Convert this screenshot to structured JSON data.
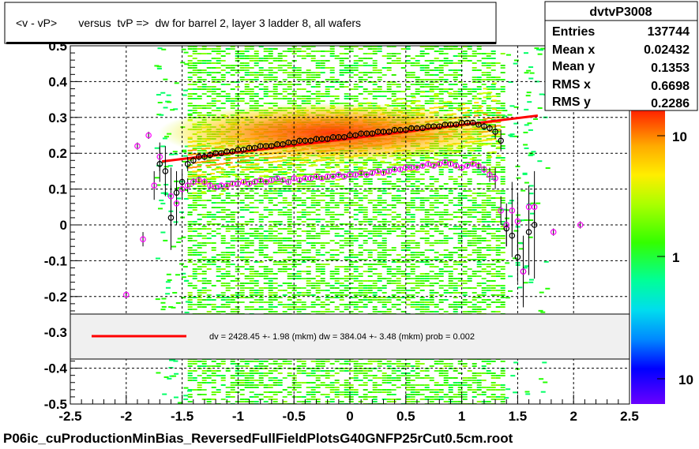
{
  "chart_data": {
    "type": "scatter",
    "title": "<v - vP>       versus  tvP =>  dw for barrel 2, layer 3 ladder 8, all wafers",
    "footer": "P06ic_cuProductionMinBias_ReversedFullFieldPlotsG40GNFP25rCut0.5cm.root",
    "xlim": [
      -2.5,
      2.5
    ],
    "ylim": [
      -0.5,
      0.5
    ],
    "x_ticks": [
      "-2.5",
      "-2",
      "-1.5",
      "-1",
      "-0.5",
      "0",
      "0.5",
      "1",
      "1.5",
      "2",
      "2.5"
    ],
    "y_ticks": [
      "-0.5",
      "-0.4",
      "-0.3",
      "-0.2",
      "-0.1",
      "0",
      "0.1",
      "0.2",
      "0.3",
      "0.4",
      "0.5"
    ],
    "grid": true,
    "colorbar": {
      "scale": "log",
      "labels": [
        "10",
        "1",
        "10"
      ],
      "label_values": [
        10,
        1,
        0.1
      ]
    },
    "stats": {
      "name": "dvtvP3008",
      "rows": [
        {
          "label": "Entries",
          "value": "137744"
        },
        {
          "label": "Mean x",
          "value": "0.02432"
        },
        {
          "label": "Mean y",
          "value": "0.1353"
        },
        {
          "label": "RMS x",
          "value": "0.6698"
        },
        {
          "label": "RMS y",
          "value": "0.2286"
        }
      ]
    },
    "fit_legend": "dv = 2428.45 +-  1.98 (mkm) dw =  384.04 +-  3.48 (mkm) prob = 0.002",
    "fit_line": {
      "x": [
        -1.68,
        1.68
      ],
      "y": [
        0.177,
        0.305
      ],
      "color": "#ff0000"
    },
    "series": [
      {
        "marker": "black-open-circle",
        "x": [
          -1.7,
          -1.65,
          -1.6,
          -1.55,
          -1.5,
          -1.45,
          -1.4,
          -1.35,
          -1.3,
          -1.25,
          -1.2,
          -1.15,
          -1.1,
          -1.05,
          -1.0,
          -0.95,
          -0.9,
          -0.85,
          -0.8,
          -0.75,
          -0.7,
          -0.65,
          -0.6,
          -0.55,
          -0.5,
          -0.45,
          -0.4,
          -0.35,
          -0.3,
          -0.25,
          -0.2,
          -0.15,
          -0.1,
          -0.05,
          0.0,
          0.05,
          0.1,
          0.15,
          0.2,
          0.25,
          0.3,
          0.35,
          0.4,
          0.45,
          0.5,
          0.55,
          0.6,
          0.65,
          0.7,
          0.75,
          0.8,
          0.85,
          0.9,
          0.95,
          1.0,
          1.05,
          1.1,
          1.15,
          1.2,
          1.25,
          1.3,
          1.35,
          1.4,
          1.45,
          1.5,
          1.55,
          1.6,
          1.65
        ],
        "y": [
          0.17,
          0.15,
          0.02,
          0.09,
          0.12,
          0.17,
          0.18,
          0.19,
          0.19,
          0.195,
          0.2,
          0.2,
          0.205,
          0.205,
          0.21,
          0.21,
          0.215,
          0.215,
          0.22,
          0.22,
          0.22,
          0.225,
          0.225,
          0.23,
          0.23,
          0.235,
          0.235,
          0.235,
          0.24,
          0.24,
          0.24,
          0.245,
          0.245,
          0.245,
          0.25,
          0.25,
          0.255,
          0.255,
          0.255,
          0.26,
          0.26,
          0.26,
          0.265,
          0.265,
          0.265,
          0.27,
          0.27,
          0.27,
          0.275,
          0.275,
          0.275,
          0.28,
          0.28,
          0.28,
          0.285,
          0.285,
          0.285,
          0.28,
          0.275,
          0.27,
          0.26,
          0.235,
          -0.01,
          -0.03,
          -0.09,
          -0.13,
          -0.02,
          0.0
        ],
        "err": [
          0.05,
          0.07,
          0.09,
          0.06,
          0.03,
          0.02,
          0.01,
          0.01,
          0.01,
          0.01,
          0.005,
          0.005,
          0.005,
          0.005,
          0.005,
          0.005,
          0.005,
          0.005,
          0.005,
          0.005,
          0.005,
          0.005,
          0.005,
          0.005,
          0.005,
          0.005,
          0.005,
          0.005,
          0.005,
          0.005,
          0.005,
          0.005,
          0.005,
          0.005,
          0.005,
          0.005,
          0.005,
          0.005,
          0.005,
          0.005,
          0.005,
          0.005,
          0.005,
          0.005,
          0.005,
          0.005,
          0.005,
          0.005,
          0.005,
          0.005,
          0.005,
          0.005,
          0.005,
          0.005,
          0.005,
          0.005,
          0.005,
          0.005,
          0.01,
          0.01,
          0.02,
          0.03,
          0.05,
          0.06,
          0.07,
          0.09,
          0.12,
          0.15
        ]
      },
      {
        "marker": "magenta-open-circle",
        "x": [
          -2.0,
          -1.9,
          -1.85,
          -1.8,
          -1.75,
          -1.7,
          -1.6,
          -1.55,
          -1.5,
          -1.45,
          -1.4,
          -1.35,
          -1.3,
          -1.25,
          -1.2,
          -1.15,
          -1.1,
          -1.05,
          -1.0,
          -0.95,
          -0.9,
          -0.85,
          -0.8,
          -0.75,
          -0.7,
          -0.65,
          -0.6,
          -0.55,
          -0.5,
          -0.45,
          -0.4,
          -0.35,
          -0.3,
          -0.25,
          -0.2,
          -0.15,
          -0.1,
          -0.05,
          0.0,
          0.05,
          0.1,
          0.15,
          0.2,
          0.25,
          0.3,
          0.35,
          0.4,
          0.45,
          0.5,
          0.55,
          0.6,
          0.65,
          0.7,
          0.75,
          0.8,
          0.85,
          0.9,
          0.95,
          1.0,
          1.05,
          1.1,
          1.15,
          1.2,
          1.25,
          1.3,
          1.35,
          1.4,
          1.45,
          1.5,
          1.55,
          1.6,
          1.65,
          1.82,
          2.06
        ],
        "y": [
          -0.195,
          0.22,
          -0.04,
          0.25,
          0.11,
          0.19,
          0.08,
          0.06,
          0.1,
          0.11,
          0.12,
          0.125,
          0.12,
          0.11,
          0.105,
          0.11,
          0.11,
          0.115,
          0.115,
          0.12,
          0.115,
          0.12,
          0.125,
          0.12,
          0.125,
          0.13,
          0.125,
          0.12,
          0.13,
          0.125,
          0.13,
          0.13,
          0.135,
          0.13,
          0.135,
          0.135,
          0.14,
          0.135,
          0.14,
          0.14,
          0.145,
          0.14,
          0.145,
          0.15,
          0.145,
          0.15,
          0.155,
          0.155,
          0.16,
          0.16,
          0.16,
          0.165,
          0.17,
          0.165,
          0.17,
          0.175,
          0.17,
          0.165,
          0.16,
          0.165,
          0.17,
          0.165,
          0.155,
          0.14,
          0.13,
          0.04,
          0.0,
          0.04,
          0.01,
          -0.13,
          0.05,
          0.05,
          -0.02,
          0.0
        ],
        "err": [
          0.01,
          0.01,
          0.02,
          0.01,
          0.04,
          0.04,
          0.08,
          0.06,
          0.03,
          0.02,
          0.01,
          0.01,
          0.01,
          0.01,
          0.005,
          0.005,
          0.005,
          0.005,
          0.005,
          0.005,
          0.005,
          0.005,
          0.005,
          0.005,
          0.005,
          0.005,
          0.005,
          0.005,
          0.005,
          0.005,
          0.005,
          0.005,
          0.005,
          0.005,
          0.005,
          0.005,
          0.005,
          0.005,
          0.005,
          0.005,
          0.005,
          0.005,
          0.005,
          0.005,
          0.005,
          0.005,
          0.005,
          0.005,
          0.005,
          0.005,
          0.005,
          0.005,
          0.005,
          0.005,
          0.005,
          0.005,
          0.005,
          0.005,
          0.005,
          0.005,
          0.005,
          0.01,
          0.01,
          0.02,
          0.03,
          0.04,
          0.06,
          0.08,
          0.08,
          0.1,
          0.06,
          0.05,
          0.01,
          0.01
        ]
      }
    ]
  }
}
